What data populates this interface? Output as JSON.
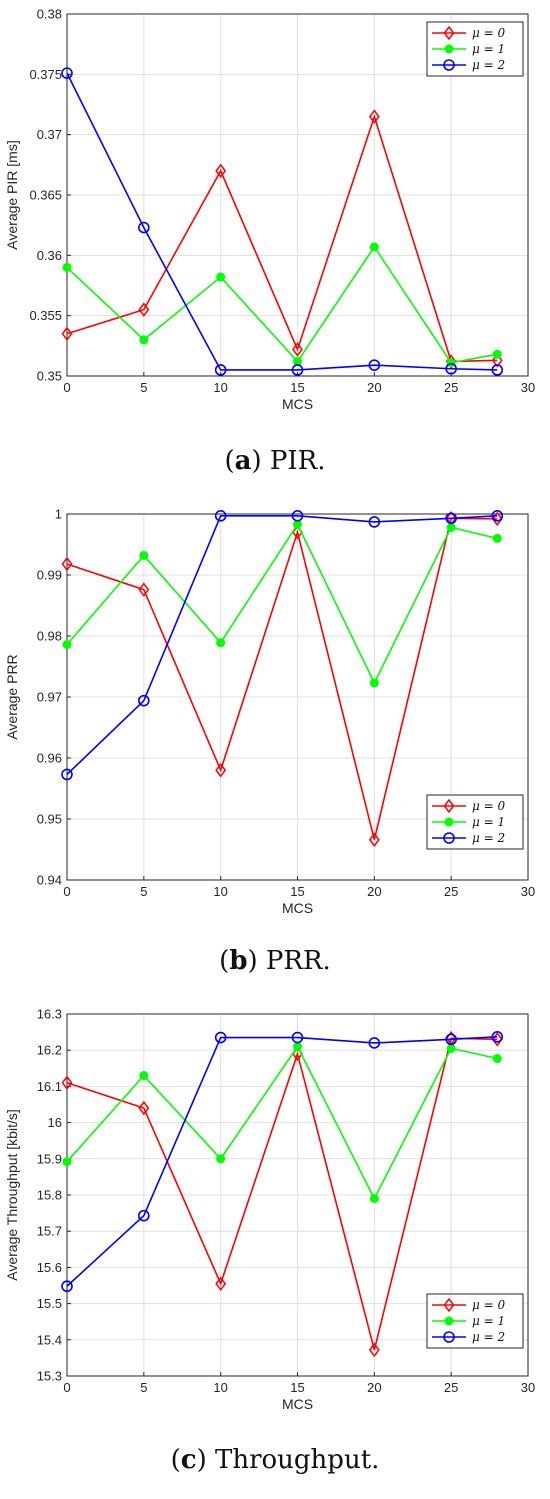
{
  "colors": {
    "mu0": "#ff0000",
    "mu1": "#00ff00",
    "mu2": "#0000ff",
    "grid": "#e0e0e0",
    "axis": "#262626"
  },
  "chart_data": [
    {
      "type": "line",
      "caption_letter": "a",
      "caption_text": ") PIR.",
      "xlabel": "MCS",
      "ylabel": "Average PIR [ms]",
      "xlim": [
        0,
        30
      ],
      "ylim": [
        0.35,
        0.38
      ],
      "x_ticks": [
        0,
        5,
        10,
        15,
        20,
        25,
        30
      ],
      "y_ticks": [
        0.35,
        0.355,
        0.36,
        0.365,
        0.37,
        0.375,
        0.38
      ],
      "y_tick_labels": [
        "0.35",
        "0.355",
        "0.36",
        "0.365",
        "0.37",
        "0.375",
        "0.38"
      ],
      "grid": true,
      "legend_position": "top-right",
      "x": [
        0,
        5,
        10,
        15,
        20,
        25,
        28
      ],
      "series": [
        {
          "name": "μ = 0",
          "marker": "diamond",
          "values": [
            0.3535,
            0.3555,
            0.367,
            0.3522,
            0.3715,
            0.3512,
            0.3513
          ]
        },
        {
          "name": "μ = 1",
          "marker": "dot",
          "values": [
            0.359,
            0.353,
            0.3582,
            0.3512,
            0.3607,
            0.3511,
            0.3518
          ]
        },
        {
          "name": "μ = 2",
          "marker": "circle",
          "values": [
            0.3751,
            0.3623,
            0.3505,
            0.3505,
            0.3509,
            0.3506,
            0.3505
          ]
        }
      ]
    },
    {
      "type": "line",
      "caption_letter": "b",
      "caption_text": ") PRR.",
      "xlabel": "MCS",
      "ylabel": "Average PRR",
      "xlim": [
        0,
        30
      ],
      "ylim": [
        0.94,
        1.0
      ],
      "x_ticks": [
        0,
        5,
        10,
        15,
        20,
        25,
        30
      ],
      "y_ticks": [
        0.94,
        0.95,
        0.96,
        0.97,
        0.98,
        0.99,
        1.0
      ],
      "y_tick_labels": [
        "0.94",
        "0.95",
        "0.96",
        "0.97",
        "0.98",
        "0.99",
        "1"
      ],
      "grid": true,
      "legend_position": "bottom-right",
      "x": [
        0,
        5,
        10,
        15,
        20,
        25,
        28
      ],
      "series": [
        {
          "name": "μ = 0",
          "marker": "diamond",
          "values": [
            0.9918,
            0.9876,
            0.958,
            0.997,
            0.9466,
            0.9993,
            0.9992
          ]
        },
        {
          "name": "μ = 1",
          "marker": "dot",
          "values": [
            0.9786,
            0.9932,
            0.9789,
            0.9983,
            0.9723,
            0.9978,
            0.996
          ]
        },
        {
          "name": "μ = 2",
          "marker": "circle",
          "values": [
            0.9573,
            0.9694,
            0.9997,
            0.9997,
            0.9987,
            0.9993,
            0.9997
          ]
        }
      ]
    },
    {
      "type": "line",
      "caption_letter": "c",
      "caption_text": ") Throughput.",
      "xlabel": "MCS",
      "ylabel": "Average Throughput [kbit/s]",
      "xlim": [
        0,
        30
      ],
      "ylim": [
        15.3,
        16.3
      ],
      "x_ticks": [
        0,
        5,
        10,
        15,
        20,
        25,
        30
      ],
      "y_ticks": [
        15.3,
        15.4,
        15.5,
        15.6,
        15.7,
        15.8,
        15.9,
        16.0,
        16.1,
        16.2,
        16.3
      ],
      "y_tick_labels": [
        "15.3",
        "15.4",
        "15.5",
        "15.6",
        "15.7",
        "15.8",
        "15.9",
        "16",
        "16.1",
        "16.2",
        "16.3"
      ],
      "grid": true,
      "legend_position": "bottom-right",
      "x": [
        0,
        5,
        10,
        15,
        20,
        25,
        28
      ],
      "series": [
        {
          "name": "μ = 0",
          "marker": "diamond",
          "values": [
            16.11,
            16.04,
            15.555,
            16.19,
            15.372,
            16.233,
            16.23
          ]
        },
        {
          "name": "μ = 1",
          "marker": "dot",
          "values": [
            15.892,
            16.13,
            15.9,
            16.21,
            15.79,
            16.205,
            16.177
          ]
        },
        {
          "name": "μ = 2",
          "marker": "circle",
          "values": [
            15.548,
            15.743,
            16.235,
            16.235,
            16.22,
            16.23,
            16.237
          ]
        }
      ]
    }
  ]
}
